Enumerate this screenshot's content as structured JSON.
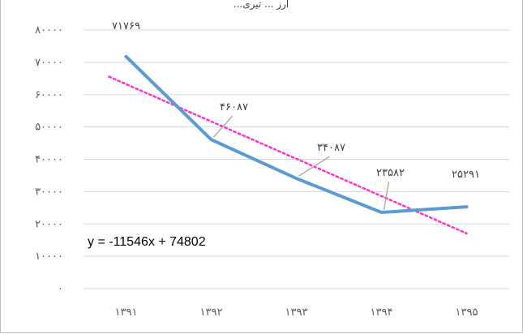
{
  "chart_data": {
    "type": "line",
    "title": "...ارز ... تیری",
    "categories": [
      "۱۳۹۱",
      "۱۳۹۲",
      "۱۳۹۳",
      "۱۳۹۴",
      "۱۳۹۵"
    ],
    "series": [
      {
        "values": [
          71769,
          46087,
          34087,
          23582,
          25291
        ],
        "data_labels": [
          "۷۱۷۶۹",
          "۴۶۰۸۷",
          "۳۴۰۸۷",
          "۲۳۵۸۲",
          "۲۵۲۹۱"
        ],
        "color": "#5b9bd5"
      }
    ],
    "trendline": {
      "type": "linear",
      "equation": "y = -11546x + 74802",
      "slope": -11546,
      "intercept": 74802,
      "color": "#ff33cc",
      "style": "dotted"
    },
    "ylim": [
      0,
      80000
    ],
    "yticks": [
      0,
      10000,
      20000,
      30000,
      40000,
      50000,
      60000,
      70000,
      80000
    ],
    "ytick_labels": [
      "۰",
      "۱۰۰۰۰",
      "۲۰۰۰۰",
      "۳۰۰۰۰",
      "۴۰۰۰۰",
      "۵۰۰۰۰",
      "۶۰۰۰۰",
      "۷۰۰۰۰",
      "۸۰۰۰۰"
    ],
    "grid": true,
    "gridline_color": "#d9d9d9",
    "legend": "none"
  }
}
